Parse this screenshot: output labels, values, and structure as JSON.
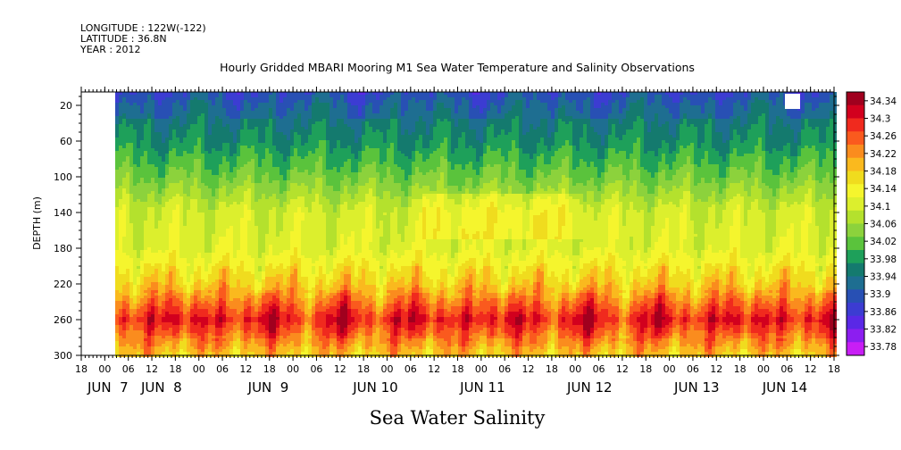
{
  "meta": {
    "longitude": "LONGITUDE : 122W(-122)",
    "latitude": "LATITUDE : 36.8N",
    "year": "YEAR : 2012"
  },
  "chart_data": {
    "type": "heatmap",
    "title": "Hourly Gridded MBARI Mooring M1 Sea Water Temperature and Salinity Observations",
    "xlabel": "Sea Water Salinity",
    "ylabel": "DEPTH (m)",
    "y_ticks": [
      "20",
      "60",
      "100",
      "140",
      "180",
      "220",
      "260",
      "300"
    ],
    "y_range": [
      300,
      5
    ],
    "hour_ticks": [
      "18",
      "00",
      "06",
      "12",
      "18",
      "00",
      "06",
      "12",
      "18",
      "00",
      "06",
      "12",
      "18",
      "00",
      "06",
      "12",
      "18",
      "00",
      "06",
      "12",
      "18",
      "00",
      "06",
      "12",
      "18",
      "00",
      "06",
      "12",
      "18",
      "00",
      "06",
      "12",
      "18"
    ],
    "day_labels": [
      "JUN  7",
      "JUN  8",
      "JUN  9",
      "JUN 10",
      "JUN 11",
      "JUN 12",
      "JUN 13",
      "JUN 14"
    ],
    "x_range": [
      "2012-06-06 18:00",
      "2012-06-14 18:00"
    ],
    "data_start": "2012-06-07 03:00",
    "colorbar_ticks": [
      "34.34",
      "34.3",
      "34.26",
      "34.22",
      "34.18",
      "34.14",
      "34.1",
      "34.06",
      "34.02",
      "33.98",
      "33.94",
      "33.9",
      "33.86",
      "33.82",
      "33.78"
    ],
    "colorbar_colors": [
      "#a0001e",
      "#d2001e",
      "#f02a1e",
      "#fa5a1e",
      "#fa8c1e",
      "#fab91e",
      "#f0dc1e",
      "#f5f52d",
      "#dcef2d",
      "#b4e12d",
      "#8cd23c",
      "#5ac33c",
      "#1ea05a",
      "#147a6e",
      "#1e6e91",
      "#2850b4",
      "#3c3cd2",
      "#5a28e6",
      "#8c1ef0",
      "#c81ef5"
    ],
    "depth_profile": [
      {
        "depth": 5,
        "salinity": 33.9
      },
      {
        "depth": 20,
        "salinity": 33.93
      },
      {
        "depth": 60,
        "salinity": 33.97
      },
      {
        "depth": 100,
        "salinity": 34.03
      },
      {
        "depth": 140,
        "salinity": 34.1
      },
      {
        "depth": 180,
        "salinity": 34.11
      },
      {
        "depth": 220,
        "salinity": 34.18
      },
      {
        "depth": 260,
        "salinity": 34.3
      },
      {
        "depth": 300,
        "salinity": 34.18
      }
    ],
    "notes": "Filled-contour of hourly gridded salinity vs depth and time; approximate reconstruction of field."
  }
}
